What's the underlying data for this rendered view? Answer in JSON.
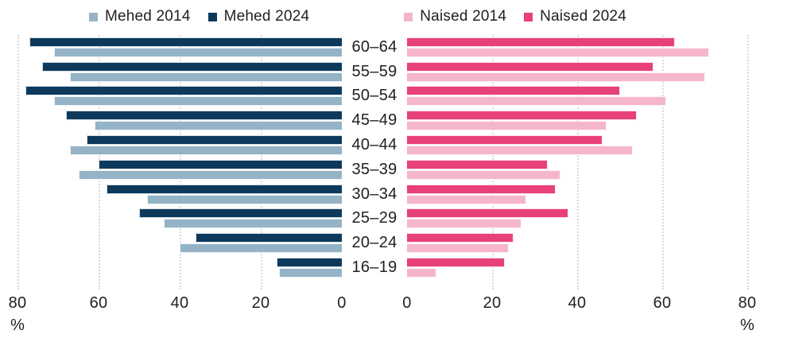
{
  "colors": {
    "mehed_2014": "#94b3c6",
    "mehed_2024": "#0d3a5c",
    "naised_2014": "#f5b5cc",
    "naised_2024": "#e8417a",
    "gridline": "#d9d9d9",
    "text": "#212121"
  },
  "legend": [
    {
      "label": "Mehed 2014",
      "color_key": "mehed_2014"
    },
    {
      "label": "Mehed 2024",
      "color_key": "mehed_2024"
    },
    {
      "label": "Naised 2014",
      "color_key": "naised_2014"
    },
    {
      "label": "Naised 2024",
      "color_key": "naised_2024"
    }
  ],
  "chart_data": {
    "type": "bar",
    "layout": "back-to-back horizontal pyramid, ages top-to-bottom oldest-to-youngest, 2024 bar above 2014 bar in each age group",
    "title": "",
    "unit_label": "%",
    "xlim": [
      0,
      80
    ],
    "grid": "dotted vertical gridlines",
    "legend_position": "top center",
    "categories": [
      "60–64",
      "55–59",
      "50–54",
      "45–49",
      "40–44",
      "35–39",
      "30–34",
      "25–29",
      "20–24",
      "16–19"
    ],
    "series": [
      {
        "name": "Mehed 2024",
        "side": "left",
        "color_key": "mehed_2024",
        "values": [
          77,
          74,
          78,
          68,
          63,
          60,
          58,
          50,
          36,
          16
        ]
      },
      {
        "name": "Mehed 2014",
        "side": "left",
        "color_key": "mehed_2014",
        "values": [
          71,
          67,
          71,
          61,
          67,
          65,
          48,
          44,
          40,
          15.5
        ]
      },
      {
        "name": "Naised 2024",
        "side": "right",
        "color_key": "naised_2024",
        "values": [
          63,
          58,
          50,
          54,
          46,
          33,
          35,
          38,
          25,
          23
        ]
      },
      {
        "name": "Naised 2014",
        "side": "right",
        "color_key": "naised_2014",
        "values": [
          71,
          70,
          61,
          47,
          53,
          36,
          28,
          27,
          24,
          7
        ]
      }
    ],
    "axes": {
      "left": {
        "tick_labels": [
          80,
          60,
          40,
          20,
          0
        ],
        "gridline_ticks": [
          80,
          60,
          40,
          20
        ],
        "unit_label": "%",
        "unit_at_tick": 80
      },
      "right": {
        "tick_labels": [
          0,
          20,
          40,
          60,
          80
        ],
        "gridline_ticks": [
          20,
          40,
          60,
          80
        ],
        "unit_label": "%",
        "unit_at_tick": 80
      }
    }
  }
}
